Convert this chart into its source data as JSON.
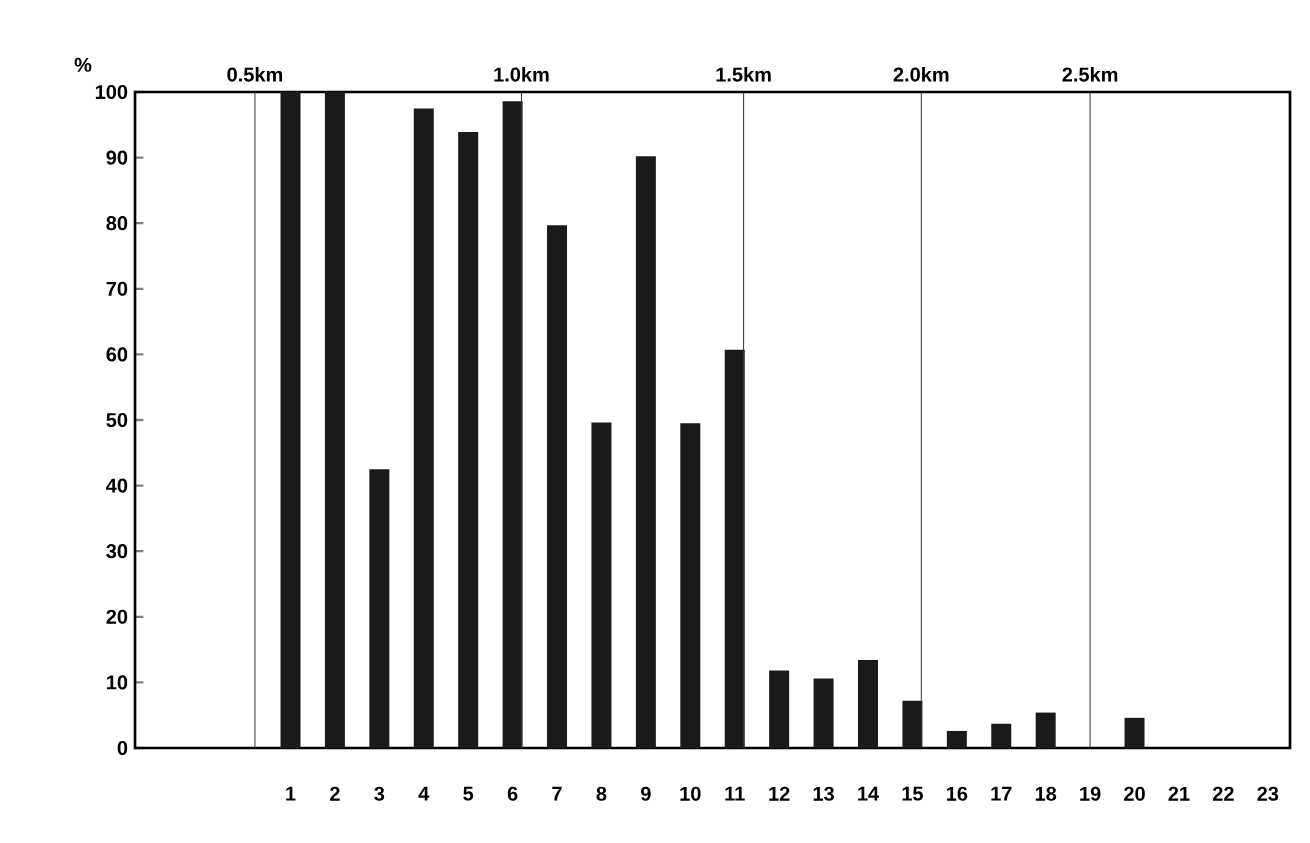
{
  "chart_data": {
    "type": "bar",
    "ylabel": "%",
    "x": [
      1,
      2,
      3,
      4,
      5,
      6,
      7,
      8,
      9,
      10,
      11,
      12,
      13,
      14,
      15,
      16,
      17,
      18,
      19,
      20,
      21,
      22,
      23
    ],
    "values": [
      100,
      100,
      42.5,
      97.5,
      93.9,
      98.6,
      79.7,
      49.6,
      90.2,
      49.5,
      60.7,
      11.8,
      10.6,
      13.4,
      7.2,
      2.6,
      3.7,
      5.4,
      0,
      4.6,
      0,
      0,
      0
    ],
    "color": "#1a1a1a",
    "xlim": [
      -2.5,
      23.5
    ],
    "xticks": [
      1,
      2,
      3,
      4,
      5,
      6,
      7,
      8,
      9,
      10,
      11,
      12,
      13,
      14,
      15,
      16,
      17,
      18,
      19,
      20,
      21,
      22,
      23
    ],
    "ylim": [
      0,
      100
    ],
    "yticks": [
      0,
      10,
      20,
      30,
      40,
      50,
      60,
      70,
      80,
      90,
      100
    ],
    "ref_lines": [
      {
        "axis": "x",
        "value": 0.2,
        "label": "0.5km"
      },
      {
        "axis": "x",
        "value": 6.2,
        "label": "1.0km"
      },
      {
        "axis": "x",
        "value": 11.2,
        "label": "1.5km"
      },
      {
        "axis": "x",
        "value": 15.2,
        "label": "2.0km"
      },
      {
        "axis": "x",
        "value": 19.0,
        "label": "2.5km"
      }
    ]
  }
}
